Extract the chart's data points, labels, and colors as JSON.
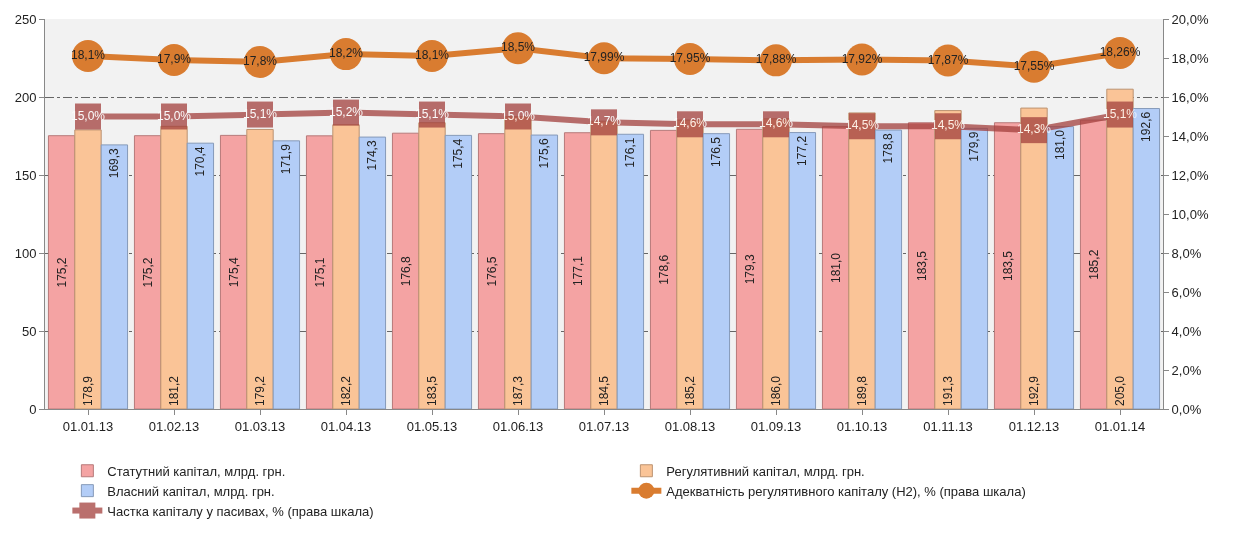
{
  "chart_data": {
    "type": "bar",
    "categories": [
      "01.01.13",
      "01.02.13",
      "01.03.13",
      "01.04.13",
      "01.05.13",
      "01.06.13",
      "01.07.13",
      "01.08.13",
      "01.09.13",
      "01.10.13",
      "01.11.13",
      "01.12.13",
      "01.01.14"
    ],
    "series": [
      {
        "name": "Статутний капітал, млрд. грн.",
        "color": "#f4a3a3",
        "values": [
          175.2,
          175.2,
          175.4,
          175.1,
          176.8,
          176.5,
          177.1,
          178.6,
          179.3,
          181.0,
          183.5,
          183.5,
          185.2
        ],
        "value_labels": [
          "175,2",
          "175,2",
          "175,4",
          "175,1",
          "176,8",
          "176,5",
          "177,1",
          "178,6",
          "179,3",
          "181,0",
          "183,5",
          "183,5",
          "185,2"
        ]
      },
      {
        "name": "Регулятивний капітал, млрд. грн.",
        "color": "#fac497",
        "values": [
          178.9,
          181.2,
          179.2,
          182.2,
          183.5,
          187.3,
          184.5,
          185.2,
          186.0,
          189.8,
          191.3,
          192.9,
          205.0
        ],
        "value_labels": [
          "178,9",
          "181,2",
          "179,2",
          "182,2",
          "183,5",
          "187,3",
          "184,5",
          "185,2",
          "186,0",
          "189,8",
          "191,3",
          "192,9",
          "205,0"
        ]
      },
      {
        "name": "Власний капітал, млрд. грн.",
        "color": "#b3cdf7",
        "values": [
          169.3,
          170.4,
          171.9,
          174.3,
          175.4,
          175.6,
          176.1,
          176.5,
          177.2,
          178.8,
          179.9,
          181.0,
          192.6
        ],
        "value_labels": [
          "169,3",
          "170,4",
          "171,9",
          "174,3",
          "175,4",
          "175,6",
          "176,1",
          "176,5",
          "177,2",
          "178,8",
          "179,9",
          "181,0",
          "192,6"
        ]
      },
      {
        "name": "Адекватність регулятивного капіталу (Н2), % (права шкала)",
        "type": "line",
        "axis": "y2",
        "marker": "circle",
        "color": "#d97c30",
        "values": [
          18.1,
          17.9,
          17.8,
          18.2,
          18.1,
          18.5,
          17.99,
          17.95,
          17.88,
          17.92,
          17.87,
          17.55,
          18.26
        ],
        "value_labels": [
          "18,1%",
          "17,9%",
          "17,8%",
          "18,2%",
          "18,1%",
          "18,5%",
          "17,99%",
          "17,95%",
          "17,88%",
          "17,92%",
          "17,87%",
          "17,55%",
          "18,26%"
        ]
      },
      {
        "name": "Частка капіталу у пасивах, % (права шкала)",
        "type": "line",
        "axis": "y2",
        "marker": "square",
        "color": "#a3403d",
        "values": [
          15.0,
          15.0,
          15.1,
          15.2,
          15.1,
          15.0,
          14.7,
          14.6,
          14.6,
          14.5,
          14.5,
          14.3,
          15.1
        ],
        "value_labels": [
          "15,0%",
          "15,0%",
          "15,1%",
          "15,2%",
          "15,1%",
          "15,0%",
          "14,7%",
          "14,6%",
          "14,6%",
          "14,5%",
          "14,5%",
          "14,3%",
          "15,1%"
        ]
      }
    ],
    "ylim": [
      0,
      250
    ],
    "yticks": [
      0,
      50,
      100,
      150,
      200,
      250
    ],
    "y2lim": [
      0,
      20
    ],
    "y2ticks": [
      {
        "value": 0,
        "label": "0,0%"
      },
      {
        "value": 2,
        "label": "2,0%"
      },
      {
        "value": 4,
        "label": "4,0%"
      },
      {
        "value": 6,
        "label": "6,0%"
      },
      {
        "value": 8,
        "label": "8,0%"
      },
      {
        "value": 10,
        "label": "10,0%"
      },
      {
        "value": 12,
        "label": "12,0%"
      },
      {
        "value": 14,
        "label": "14,0%"
      },
      {
        "value": 16,
        "label": "16,0%"
      },
      {
        "value": 18,
        "label": "18,0%"
      },
      {
        "value": 20,
        "label": "20,0%"
      }
    ],
    "grid": "y",
    "legend": "bottom"
  }
}
